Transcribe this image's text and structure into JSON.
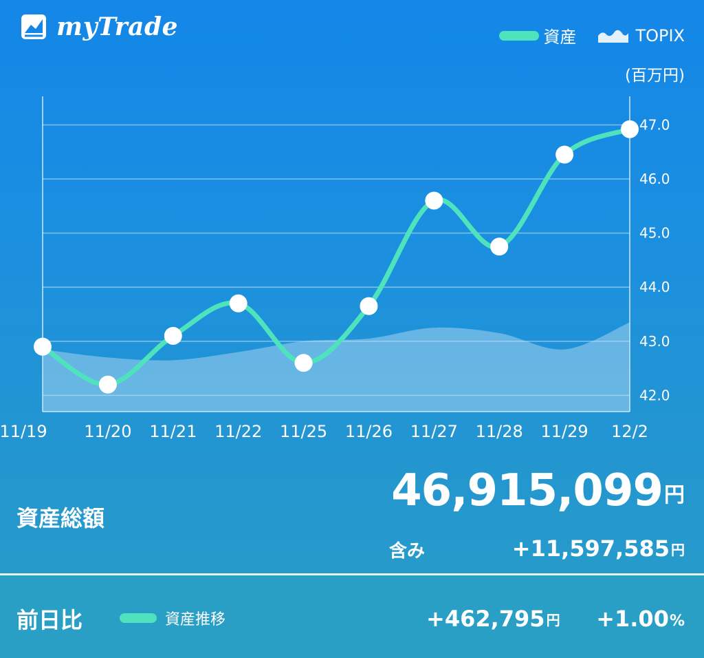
{
  "app": {
    "name": "myTrade"
  },
  "legend": {
    "asset_label": "資産",
    "topix_label": "TOPIX"
  },
  "unit_label": "(百万円)",
  "chart_data": {
    "type": "line",
    "categories": [
      "11/19",
      "11/20",
      "11/21",
      "11/22",
      "11/25",
      "11/26",
      "11/27",
      "11/28",
      "11/29",
      "12/2"
    ],
    "series": [
      {
        "name": "資産",
        "values": [
          42.9,
          42.2,
          43.1,
          43.7,
          42.6,
          43.65,
          45.6,
          44.75,
          46.45,
          46.92
        ]
      },
      {
        "name": "TOPIX",
        "values": [
          42.85,
          42.7,
          42.65,
          42.8,
          43.0,
          43.05,
          43.25,
          43.15,
          42.85,
          43.35
        ]
      }
    ],
    "y_ticks": [
      "42.0",
      "43.0",
      "44.0",
      "45.0",
      "46.0",
      "47.0"
    ],
    "ylim": [
      41.7,
      47.4
    ],
    "grid": true
  },
  "summary": {
    "label": "資産総額",
    "total_value": "46,915,099",
    "total_unit": "円",
    "included_label": "含み",
    "included_value": "+11,597,585",
    "included_unit": "円"
  },
  "daily": {
    "label": "前日比",
    "legend_label": "資産推移",
    "change_value": "+462,795",
    "change_unit": "円",
    "pct_value": "+1.00",
    "pct_unit": "%"
  },
  "colors": {
    "asset_line": "#4ee3bd",
    "topix_area": "#8cc9ec",
    "background": "#1386e8"
  }
}
